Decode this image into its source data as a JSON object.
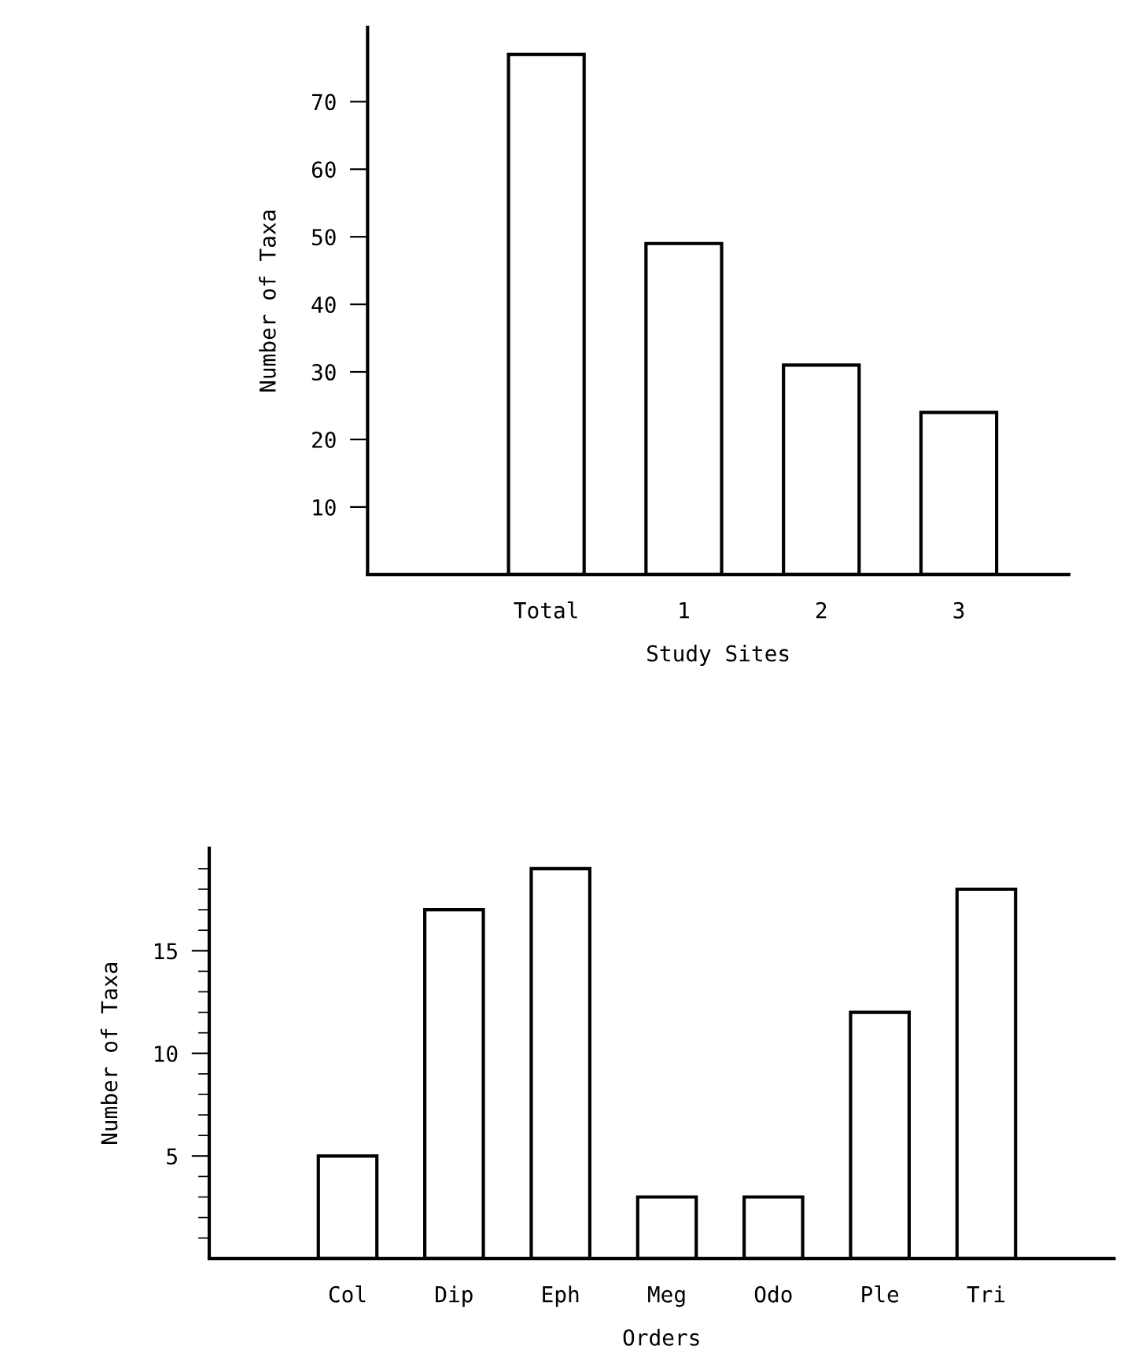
{
  "chart_data": [
    {
      "type": "bar",
      "xlabel": "Study Sites",
      "ylabel": "Number of Taxa",
      "categories": [
        "Total",
        "1",
        "2",
        "3"
      ],
      "values": [
        77,
        49,
        31,
        24
      ],
      "color": "#ffffff",
      "ylim": [
        0,
        81
      ],
      "yticks": [
        10,
        20,
        30,
        40,
        50,
        60,
        70
      ],
      "grid": false,
      "legend": false
    },
    {
      "type": "bar",
      "xlabel": "Orders",
      "ylabel": "Number of Taxa",
      "categories": [
        "Col",
        "Dip",
        "Eph",
        "Meg",
        "Odo",
        "Ple",
        "Tri"
      ],
      "values": [
        5,
        17,
        19,
        3,
        3,
        12,
        18
      ],
      "color": "#ffffff",
      "ylim": [
        0,
        20
      ],
      "yticks": [
        {
          "value": 1,
          "label": null
        },
        {
          "value": 2,
          "label": null
        },
        {
          "value": 3,
          "label": null
        },
        {
          "value": 4,
          "label": null
        },
        5,
        {
          "value": 6,
          "label": null
        },
        {
          "value": 7,
          "label": null
        },
        {
          "value": 8,
          "label": null
        },
        {
          "value": 9,
          "label": null
        },
        10,
        {
          "value": 11,
          "label": null
        },
        {
          "value": 12,
          "label": null
        },
        {
          "value": 13,
          "label": null
        },
        {
          "value": 14,
          "label": null
        },
        15,
        {
          "value": 16,
          "label": null
        },
        {
          "value": 17,
          "label": null
        },
        {
          "value": 18,
          "label": null
        },
        {
          "value": 19,
          "label": null
        }
      ],
      "grid": false,
      "legend": false
    }
  ]
}
